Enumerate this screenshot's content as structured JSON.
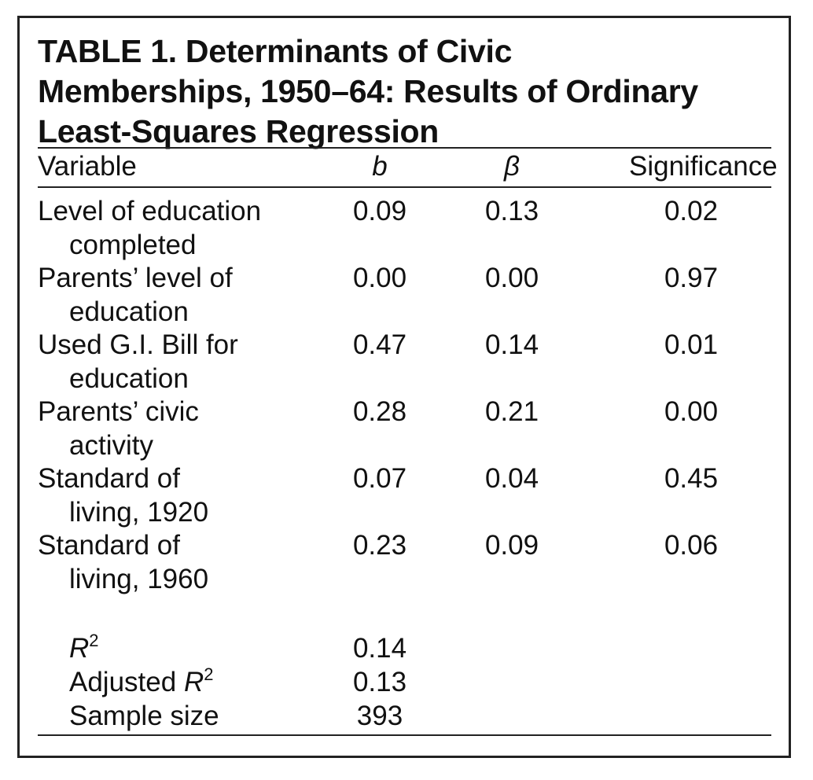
{
  "table": {
    "title": "TABLE 1.   Determinants of Civic\nMemberships, 1950–64: Results of Ordinary\nLeast-Squares Regression",
    "headers": {
      "variable": "Variable",
      "b": "b",
      "beta": "β",
      "significance": "Significance"
    },
    "rows": [
      {
        "label_line1": "Level of education",
        "label_line2": "completed",
        "b": "0.09",
        "beta": "0.13",
        "significance": "0.02"
      },
      {
        "label_line1": "Parents’ level of",
        "label_line2": "education",
        "b": "0.00",
        "beta": "0.00",
        "significance": "0.97"
      },
      {
        "label_line1": "Used G.I. Bill for",
        "label_line2": "education",
        "b": "0.47",
        "beta": "0.14",
        "significance": "0.01"
      },
      {
        "label_line1": "Parents’ civic",
        "label_line2": "activity",
        "b": "0.28",
        "beta": "0.21",
        "significance": "0.00"
      },
      {
        "label_line1": "Standard of",
        "label_line2": "living, 1920",
        "b": "0.07",
        "beta": "0.04",
        "significance": "0.45"
      },
      {
        "label_line1": "Standard of",
        "label_line2": "living, 1960",
        "b": "0.23",
        "beta": "0.09",
        "significance": "0.06"
      }
    ],
    "stats": {
      "r2_label": "R",
      "r2_sup": "2",
      "r2_value": "0.14",
      "adj_r2_prefix": "Adjusted ",
      "adj_r2_label": "R",
      "adj_r2_sup": "2",
      "adj_r2_value": "0.13",
      "sample_label": "Sample size",
      "sample_value": "393"
    }
  }
}
